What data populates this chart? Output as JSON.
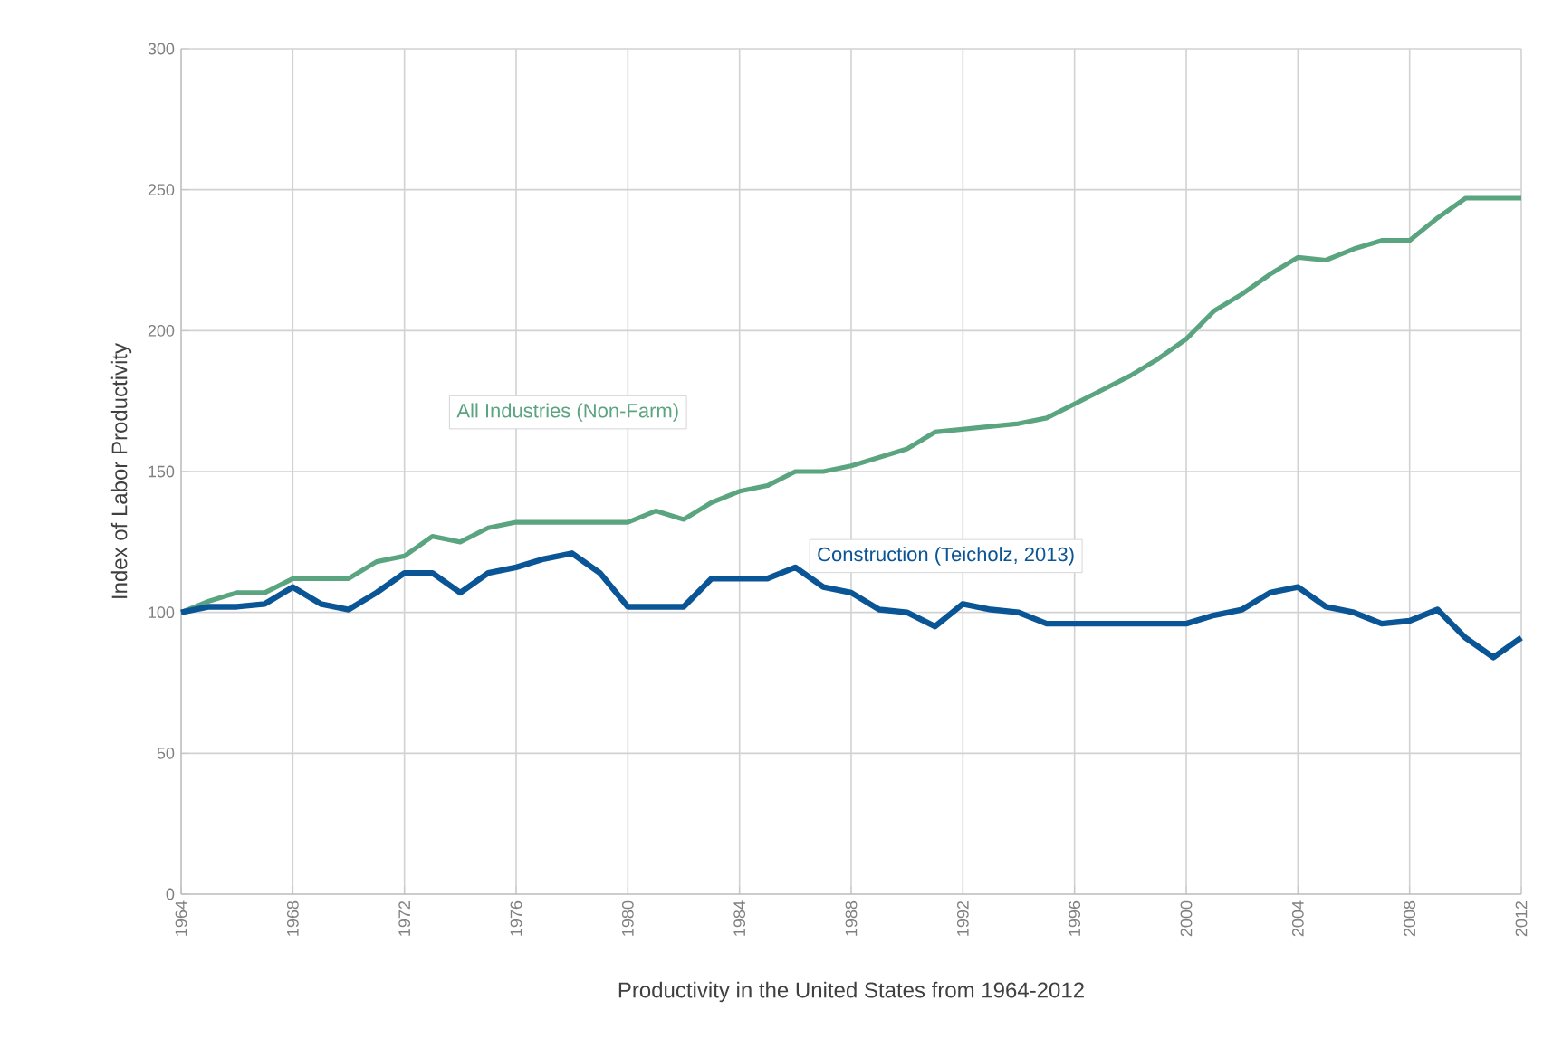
{
  "chart_data": {
    "type": "line",
    "xlabel": "Productivity in the United States from 1964-2012",
    "ylabel": "Index of Labor Productivity",
    "x": [
      1964,
      1965,
      1966,
      1967,
      1968,
      1969,
      1970,
      1971,
      1972,
      1973,
      1974,
      1975,
      1976,
      1977,
      1978,
      1979,
      1980,
      1981,
      1982,
      1983,
      1984,
      1985,
      1986,
      1987,
      1988,
      1989,
      1990,
      1991,
      1992,
      1993,
      1994,
      1995,
      1996,
      1997,
      1998,
      1999,
      2000,
      2001,
      2002,
      2003,
      2004,
      2005,
      2006,
      2007,
      2008,
      2009,
      2010,
      2011,
      2012
    ],
    "series": [
      {
        "name": "All Industries (Non-Farm)",
        "color": "#5aa57f",
        "values": [
          100,
          104,
          107,
          107,
          112,
          112,
          112,
          118,
          120,
          127,
          125,
          130,
          132,
          132,
          132,
          132,
          132,
          136,
          133,
          139,
          143,
          145,
          150,
          150,
          152,
          155,
          158,
          164,
          165,
          166,
          167,
          169,
          174,
          179,
          184,
          190,
          197,
          207,
          213,
          220,
          226,
          225,
          229,
          232,
          232,
          240,
          247,
          247,
          247
        ]
      },
      {
        "name": "Construction (Teicholz, 2013)",
        "color": "#0a5596",
        "values": [
          100,
          102,
          102,
          103,
          109,
          103,
          101,
          107,
          114,
          114,
          107,
          114,
          116,
          119,
          121,
          114,
          102,
          102,
          102,
          112,
          112,
          112,
          116,
          109,
          107,
          101,
          100,
          95,
          103,
          101,
          100,
          96,
          96,
          96,
          96,
          96,
          96,
          99,
          101,
          107,
          109,
          102,
          100,
          96,
          97,
          101,
          91,
          84,
          91
        ]
      }
    ],
    "xlim": [
      1964,
      2012
    ],
    "ylim": [
      0,
      300
    ],
    "xticks": [
      1964,
      1968,
      1972,
      1976,
      1980,
      1984,
      1988,
      1992,
      1996,
      2000,
      2004,
      2008,
      2012
    ],
    "yticks": [
      0,
      50,
      100,
      150,
      200,
      250,
      300
    ],
    "grid": true
  }
}
